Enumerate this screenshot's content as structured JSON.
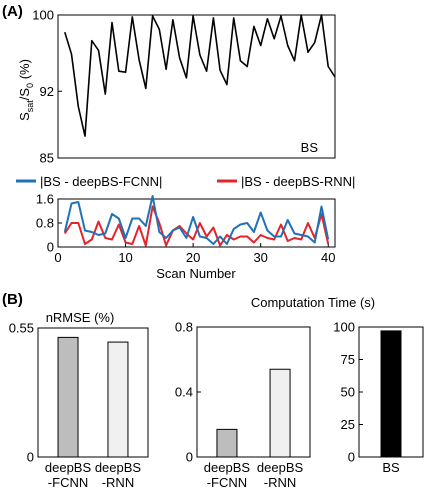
{
  "panel_labels": {
    "a": "(A)",
    "b": "(B)"
  },
  "colors": {
    "bs_line": "#000000",
    "fcnn": "#2072b8",
    "rnn": "#e3242b",
    "bar_fcnn": "#bdbdbd",
    "bar_rnn": "#f0f0f0",
    "bar_bs": "#000000"
  },
  "chart_data": [
    {
      "type": "line",
      "panel": "A-top",
      "ylabel": {
        "main": "S",
        "sub1": "sat",
        "mid": "/S",
        "sub2": "0",
        "unit": " (%)"
      },
      "ylim": [
        85,
        100
      ],
      "yticks": [
        "85",
        "92",
        "100"
      ],
      "xlim": [
        0,
        41
      ],
      "annotation": "BS",
      "series": [
        {
          "name": "BS",
          "x": [
            1,
            2,
            3,
            4,
            5,
            6,
            7,
            8,
            9,
            10,
            11,
            12,
            13,
            14,
            15,
            16,
            17,
            18,
            19,
            20,
            21,
            22,
            23,
            24,
            25,
            26,
            27,
            28,
            29,
            30,
            31,
            32,
            33,
            34,
            35,
            36,
            37,
            38,
            39,
            40,
            41
          ],
          "values": [
            98.2,
            95.9,
            90.4,
            87.3,
            97.3,
            96.3,
            91.7,
            99.2,
            94.1,
            94.0,
            99.8,
            95.3,
            92.3,
            99.9,
            98.5,
            94.3,
            99.5,
            95.5,
            93.4,
            99.9,
            95.8,
            94.1,
            99.7,
            94.2,
            92.7,
            99.7,
            95.2,
            94.6,
            98.8,
            96.8,
            99.6,
            97.5,
            99.9,
            96.8,
            95.2,
            100.0,
            96.1,
            97.1,
            100.0,
            94.6,
            93.5
          ]
        }
      ]
    },
    {
      "type": "line",
      "panel": "A-bottom",
      "legend": [
        "|BS - deepBS-FCNN|",
        "|BS - deepBS-RNN|"
      ],
      "xlabel": "Scan Number",
      "ylim": [
        0,
        1.6
      ],
      "yticks": [
        "0",
        "0.8",
        "1.6"
      ],
      "xlim": [
        0,
        41
      ],
      "xticks": [
        "0",
        "10",
        "20",
        "30",
        "40"
      ],
      "series": [
        {
          "name": "|BS - deepBS-FCNN|",
          "x": [
            1,
            2,
            3,
            4,
            5,
            6,
            7,
            8,
            9,
            10,
            11,
            12,
            13,
            14,
            15,
            16,
            17,
            18,
            19,
            20,
            21,
            22,
            23,
            24,
            25,
            26,
            27,
            28,
            29,
            30,
            31,
            32,
            33,
            34,
            35,
            36,
            37,
            38,
            39,
            40
          ],
          "values": [
            0.5,
            1.45,
            1.5,
            0.55,
            0.5,
            0.4,
            0.45,
            1.1,
            0.95,
            0.3,
            0.95,
            0.95,
            0.7,
            1.7,
            0.5,
            0.3,
            0.55,
            0.65,
            0.3,
            1.0,
            0.35,
            0.3,
            0.1,
            0.35,
            0.1,
            0.6,
            0.75,
            0.8,
            0.5,
            1.15,
            0.55,
            0.35,
            0.35,
            0.9,
            0.45,
            0.4,
            0.35,
            0.15,
            1.35,
            0.25
          ]
        },
        {
          "name": "|BS - deepBS-RNN|",
          "x": [
            1,
            2,
            3,
            4,
            5,
            6,
            7,
            8,
            9,
            10,
            11,
            12,
            13,
            14,
            15,
            16,
            17,
            18,
            19,
            20,
            21,
            22,
            23,
            24,
            25,
            26,
            27,
            28,
            29,
            30,
            31,
            32,
            33,
            34,
            35,
            36,
            37,
            38,
            39,
            40
          ],
          "values": [
            0.45,
            0.8,
            0.8,
            0.1,
            0.25,
            0.85,
            0.3,
            0.25,
            0.75,
            0.15,
            0.1,
            0.7,
            0.05,
            1.35,
            0.8,
            0.05,
            0.55,
            0.7,
            0.45,
            0.25,
            0.8,
            0.35,
            0.65,
            0.05,
            0.4,
            0.25,
            0.35,
            0.35,
            0.15,
            0.4,
            0.3,
            0.25,
            0.75,
            0.2,
            0.3,
            0.25,
            0.8,
            0.3,
            1.1,
            0.1
          ]
        }
      ]
    },
    {
      "type": "bar",
      "panel": "B-nrmse",
      "title": "nRMSE (%)",
      "ylim": [
        0,
        0.55
      ],
      "yticks": [
        "0",
        "0.55"
      ],
      "categories": [
        [
          "deepBS",
          "-FCNN"
        ],
        [
          "deepBS",
          "-RNN"
        ]
      ],
      "values": [
        0.51,
        0.49
      ]
    },
    {
      "type": "bar",
      "panel": "B-time-deep",
      "title": "Computation Time (s)",
      "ylim": [
        0,
        0.8
      ],
      "yticks": [
        "0",
        "0.4",
        "0.8"
      ],
      "categories": [
        [
          "deepBS",
          "-FCNN"
        ],
        [
          "deepBS",
          "-RNN"
        ]
      ],
      "values": [
        0.17,
        0.54
      ]
    },
    {
      "type": "bar",
      "panel": "B-time-bs",
      "ylim": [
        0,
        100
      ],
      "yticks": [
        "0",
        "25",
        "50",
        "75",
        "100"
      ],
      "categories": [
        [
          "BS"
        ]
      ],
      "values": [
        97
      ]
    }
  ]
}
